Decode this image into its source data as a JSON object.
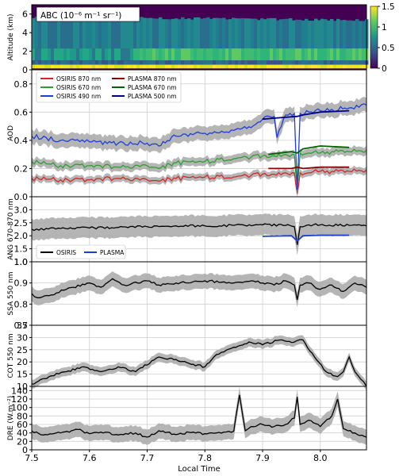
{
  "chart_data": [
    {
      "id": "abc",
      "type": "heatmap",
      "annotation": "ABC (10⁻⁶ m⁻¹ sr⁻¹)",
      "ylabel": "Altitude (km)",
      "ylim": [
        0,
        7
      ],
      "yticks": [
        "0",
        "2",
        "4",
        "6"
      ],
      "colorbar": {
        "range": [
          0,
          1.5
        ],
        "ticks": [
          "0",
          "0.5",
          "1",
          "1.5"
        ],
        "colors": [
          "#440154",
          "#3b528b",
          "#21918c",
          "#5ec962",
          "#fde725"
        ]
      }
    },
    {
      "id": "aod",
      "type": "line",
      "ylabel": "AOD",
      "ylim": [
        0,
        0.9
      ],
      "yticks": [
        "0.0",
        "0.2",
        "0.4",
        "0.6",
        "0.8"
      ],
      "grid": true,
      "legend_position": "top-left",
      "legend": [
        {
          "name": "OSIRIS 870 nm",
          "color": "#d62728"
        },
        {
          "name": "PLASMA 870 nm",
          "color": "#8b0000"
        },
        {
          "name": "OSIRIS 670 nm",
          "color": "#2ca02c"
        },
        {
          "name": "PLASMA 670 nm",
          "color": "#006400"
        },
        {
          "name": "OSIRIS 490 nm",
          "color": "#1f3fd6"
        },
        {
          "name": "PLASMA 500 nm",
          "color": "#00008b"
        }
      ],
      "series": [
        {
          "name": "OSIRIS 870 nm",
          "color": "#d62728",
          "band": 0.025,
          "x": [
            7.5,
            7.55,
            7.6,
            7.65,
            7.7,
            7.72,
            7.75,
            7.8,
            7.85,
            7.88,
            7.9,
            7.92,
            7.94,
            7.955,
            7.96,
            7.965,
            7.98,
            8.0,
            8.02,
            8.05,
            8.08
          ],
          "y": [
            0.13,
            0.12,
            0.12,
            0.13,
            0.12,
            0.11,
            0.13,
            0.14,
            0.14,
            0.15,
            0.16,
            0.16,
            0.17,
            0.17,
            0.02,
            0.17,
            0.17,
            0.18,
            0.18,
            0.18,
            0.19
          ]
        },
        {
          "name": "OSIRIS 670 nm",
          "color": "#2ca02c",
          "band": 0.03,
          "x": [
            7.5,
            7.55,
            7.6,
            7.65,
            7.7,
            7.72,
            7.75,
            7.8,
            7.85,
            7.88,
            7.9,
            7.92,
            7.94,
            7.955,
            7.96,
            7.965,
            7.98,
            8.0,
            8.02,
            8.05,
            8.08
          ],
          "y": [
            0.25,
            0.22,
            0.22,
            0.21,
            0.22,
            0.2,
            0.24,
            0.25,
            0.27,
            0.28,
            0.29,
            0.29,
            0.3,
            0.3,
            0.05,
            0.31,
            0.31,
            0.31,
            0.32,
            0.32,
            0.33
          ]
        },
        {
          "name": "OSIRIS 490 nm",
          "color": "#1f3fd6",
          "band": 0.05,
          "x": [
            7.5,
            7.55,
            7.6,
            7.65,
            7.7,
            7.72,
            7.75,
            7.8,
            7.85,
            7.88,
            7.9,
            7.92,
            7.925,
            7.94,
            7.955,
            7.96,
            7.965,
            7.98,
            8.0,
            8.02,
            8.05,
            8.08
          ],
          "y": [
            0.43,
            0.4,
            0.39,
            0.38,
            0.38,
            0.36,
            0.43,
            0.45,
            0.47,
            0.49,
            0.55,
            0.57,
            0.42,
            0.58,
            0.59,
            0.05,
            0.59,
            0.6,
            0.61,
            0.62,
            0.63,
            0.65
          ]
        },
        {
          "name": "PLASMA 870 nm",
          "color": "#8b0000",
          "band": 0,
          "x": [
            7.91,
            7.95,
            7.96,
            7.97,
            8.0,
            8.05
          ],
          "y": [
            0.2,
            0.2,
            0.21,
            0.2,
            0.21,
            0.21
          ]
        },
        {
          "name": "PLASMA 670 nm",
          "color": "#006400",
          "band": 0,
          "x": [
            7.91,
            7.95,
            7.96,
            7.97,
            8.0,
            8.05
          ],
          "y": [
            0.3,
            0.32,
            0.31,
            0.34,
            0.36,
            0.35
          ]
        },
        {
          "name": "PLASMA 500 nm",
          "color": "#00008b",
          "band": 0,
          "x": [
            7.9,
            7.93,
            7.96,
            7.97,
            8.0,
            8.05
          ],
          "y": [
            0.55,
            0.56,
            0.57,
            0.58,
            0.6,
            0.61
          ]
        }
      ]
    },
    {
      "id": "ang",
      "type": "line",
      "ylabel": "ANG 670-870 nm",
      "ylim": [
        1,
        3.5
      ],
      "yticks": [
        "1.0",
        "1.5",
        "2.0",
        "2.5",
        "3.0"
      ],
      "grid": true,
      "legend_position": "bottom-left",
      "legend": [
        {
          "name": "OSIRIS",
          "color": "#000000"
        },
        {
          "name": "PLASMA",
          "color": "#1f3fd6"
        }
      ],
      "series": [
        {
          "name": "OSIRIS",
          "color": "#000000",
          "band": 0.4,
          "x": [
            7.5,
            7.55,
            7.6,
            7.65,
            7.7,
            7.75,
            7.8,
            7.85,
            7.9,
            7.94,
            7.955,
            7.96,
            7.965,
            7.98,
            8.0,
            8.05,
            8.08
          ],
          "y": [
            2.25,
            2.28,
            2.3,
            2.32,
            2.35,
            2.38,
            2.38,
            2.4,
            2.42,
            2.4,
            2.35,
            1.65,
            2.35,
            2.42,
            2.42,
            2.4,
            2.38
          ]
        },
        {
          "name": "PLASMA",
          "color": "#1f3fd6",
          "band": 0,
          "x": [
            7.9,
            7.95,
            7.96,
            7.97,
            8.0,
            8.05
          ],
          "y": [
            1.98,
            2.0,
            1.8,
            2.0,
            2.02,
            2.02
          ]
        }
      ]
    },
    {
      "id": "ssa",
      "type": "line",
      "ylabel": "SSA 550 nm",
      "ylim": [
        0.7,
        1.0
      ],
      "yticks": [
        "0.7",
        "0.8",
        "0.9",
        "1.0"
      ],
      "grid": true,
      "series": [
        {
          "name": "",
          "color": "#000000",
          "band": 0.035,
          "x": [
            7.5,
            7.51,
            7.53,
            7.56,
            7.6,
            7.62,
            7.64,
            7.66,
            7.7,
            7.72,
            7.75,
            7.8,
            7.85,
            7.88,
            7.9,
            7.92,
            7.94,
            7.955,
            7.96,
            7.965,
            7.98,
            8.0,
            8.02,
            8.04,
            8.06,
            8.08
          ],
          "y": [
            0.85,
            0.83,
            0.84,
            0.87,
            0.9,
            0.88,
            0.92,
            0.89,
            0.91,
            0.89,
            0.9,
            0.91,
            0.9,
            0.91,
            0.9,
            0.89,
            0.91,
            0.89,
            0.82,
            0.89,
            0.9,
            0.87,
            0.89,
            0.86,
            0.9,
            0.88
          ]
        }
      ]
    },
    {
      "id": "cot",
      "type": "line",
      "ylabel": "COT 550 nm",
      "ylim": [
        10,
        35
      ],
      "yticks": [
        "10",
        "15",
        "20",
        "25",
        "30",
        "35"
      ],
      "grid": true,
      "series": [
        {
          "name": "",
          "color": "#000000",
          "band": 1.8,
          "x": [
            7.5,
            7.53,
            7.56,
            7.59,
            7.62,
            7.65,
            7.68,
            7.72,
            7.75,
            7.78,
            7.8,
            7.82,
            7.85,
            7.88,
            7.9,
            7.93,
            7.95,
            7.97,
            7.99,
            8.01,
            8.03,
            8.04,
            8.05,
            8.06,
            8.07,
            8.08
          ],
          "y": [
            11,
            14,
            16,
            18,
            16,
            18,
            16,
            22,
            21,
            19,
            18,
            23,
            26,
            28,
            27,
            29,
            28,
            29,
            22,
            16,
            14,
            16,
            22,
            16,
            13,
            10
          ]
        }
      ]
    },
    {
      "id": "dre",
      "type": "line",
      "ylabel": "DRE (W.m⁻²)",
      "ylim": [
        0,
        150
      ],
      "yticks": [
        "0",
        "20",
        "40",
        "60",
        "80",
        "100",
        "120",
        "140"
      ],
      "xlabel": "Local Time",
      "xlim": [
        7.5,
        8.08
      ],
      "xticks": [
        "7.5",
        "7.6",
        "7.7",
        "7.8",
        "7.9",
        "8.0"
      ],
      "grid": true,
      "series": [
        {
          "name": "",
          "color": "#000000",
          "band": 18,
          "x": [
            7.5,
            7.52,
            7.55,
            7.58,
            7.6,
            7.62,
            7.65,
            7.68,
            7.7,
            7.72,
            7.75,
            7.78,
            7.8,
            7.82,
            7.85,
            7.86,
            7.87,
            7.88,
            7.9,
            7.92,
            7.94,
            7.955,
            7.96,
            7.965,
            7.98,
            8.0,
            8.02,
            8.03,
            8.04,
            8.06,
            8.08
          ],
          "y": [
            45,
            35,
            40,
            48,
            38,
            42,
            35,
            40,
            30,
            45,
            36,
            42,
            38,
            40,
            44,
            130,
            45,
            55,
            60,
            55,
            60,
            75,
            125,
            60,
            70,
            55,
            80,
            120,
            50,
            40,
            30
          ]
        }
      ]
    }
  ]
}
